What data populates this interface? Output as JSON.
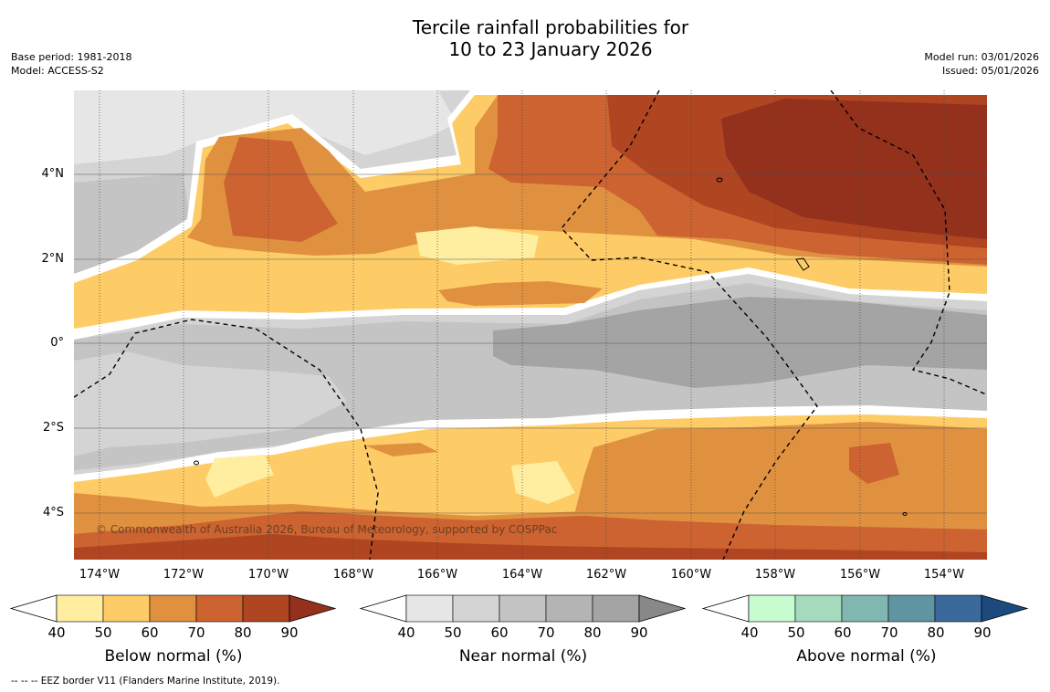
{
  "title": {
    "line1": "Tercile rainfall probabilities for",
    "line2": "10 to 23 January 2026"
  },
  "meta": {
    "base_period": "Base period: 1981-2018",
    "model": "Model: ACCESS-S2",
    "model_run": "Model run: 03/01/2026",
    "issued": "Issued: 05/01/2026"
  },
  "axes": {
    "latitudes": [
      "4°N",
      "2°N",
      "0°",
      "2°S",
      "4°S"
    ],
    "longitudes": [
      "174°W",
      "172°W",
      "170°W",
      "168°W",
      "166°W",
      "164°W",
      "162°W",
      "160°W",
      "158°W",
      "156°W",
      "154°W"
    ]
  },
  "copyright": "© Commonwealth of Australia 2026, Bureau of Meteorology, supported by COSPPac",
  "colorbars": [
    {
      "id": "below",
      "title": "Below normal (%)",
      "ticks": [
        "40",
        "50",
        "60",
        "70",
        "80",
        "90"
      ],
      "colors": [
        "#ffeda0",
        "#fecc66",
        "#e09140",
        "#cd6330",
        "#b04522",
        "#93311c"
      ]
    },
    {
      "id": "near",
      "title": "Near normal (%)",
      "ticks": [
        "40",
        "50",
        "60",
        "70",
        "80",
        "90"
      ],
      "colors": [
        "#e6e6e6",
        "#d4d4d4",
        "#c4c4c4",
        "#b4b4b4",
        "#a4a4a4",
        "#888888"
      ]
    },
    {
      "id": "above",
      "title": "Above normal (%)",
      "ticks": [
        "40",
        "50",
        "60",
        "70",
        "80",
        "90"
      ],
      "colors": [
        "#c7fcd0",
        "#a4dabe",
        "#80b7b0",
        "#5f94a2",
        "#3a6a9c",
        "#1c4a7e"
      ]
    }
  ],
  "footnote": "--  --  -- EEZ border V11 (Flanders Marine Institute, 2019)."
}
